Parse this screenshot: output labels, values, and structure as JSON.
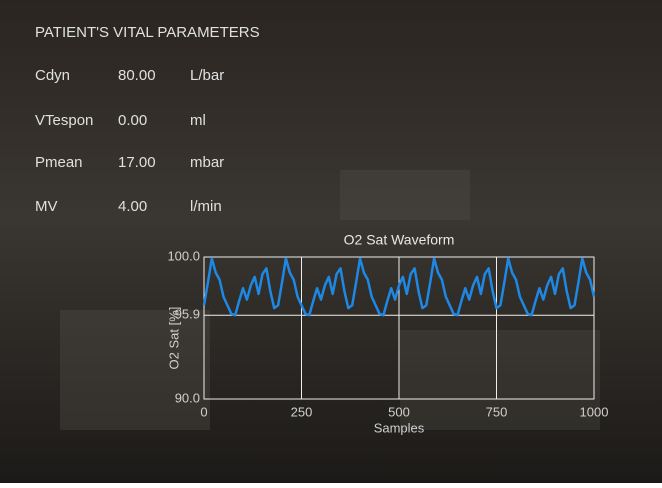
{
  "header": {
    "title": "PATIENT'S VITAL PARAMETERS"
  },
  "vitals": [
    {
      "name": "Cdyn",
      "value": "80.00",
      "unit": "L/bar"
    },
    {
      "name": "VTespon",
      "value": "0.00",
      "unit": "ml"
    },
    {
      "name": "Pmean",
      "value": "17.00",
      "unit": "mbar"
    },
    {
      "name": "MV",
      "value": "4.00",
      "unit": "l/min"
    }
  ],
  "chart_data": {
    "type": "line",
    "title": "O2 Sat Waveform",
    "x_label": "Samples",
    "y_label": "O2 Sat [%]",
    "color": "#1e88e5",
    "grid": true,
    "xlim": [
      0,
      1000
    ],
    "xticks": [
      0,
      250,
      500,
      750,
      1000
    ],
    "ylim": [
      90,
      100
    ],
    "yticks": [
      {
        "value": 90,
        "label": "90.0"
      },
      {
        "value": 95.9,
        "label": "95.9"
      },
      {
        "value": 100,
        "label": "100.0"
      }
    ],
    "x": [
      0,
      10,
      20,
      30,
      40,
      50,
      60,
      70,
      80,
      90,
      100,
      110,
      120,
      130,
      140,
      150,
      160,
      170,
      180,
      190,
      200,
      210,
      220,
      230,
      240,
      250,
      260,
      270,
      280,
      290,
      300,
      310,
      320,
      330,
      340,
      350,
      360,
      370,
      380,
      390,
      400,
      410,
      420,
      430,
      440,
      450,
      460,
      470,
      480,
      490,
      500,
      510,
      520,
      530,
      540,
      550,
      560,
      570,
      580,
      590,
      600,
      610,
      620,
      630,
      640,
      650,
      660,
      670,
      680,
      690,
      700,
      710,
      720,
      730,
      740,
      750,
      760,
      770,
      780,
      790,
      800,
      810,
      820,
      830,
      840,
      850,
      860,
      870,
      880,
      890,
      900,
      910,
      920,
      930,
      940,
      950,
      960,
      970,
      980,
      990,
      1000
    ],
    "values": [
      96.6,
      98.2,
      99.9,
      98.9,
      98.4,
      97.2,
      96.6,
      96.0,
      95.9,
      96.9,
      97.8,
      97.0,
      98.0,
      98.6,
      97.4,
      98.8,
      99.2,
      97.6,
      96.4,
      96.6,
      98.2,
      99.9,
      98.9,
      98.4,
      97.2,
      96.6,
      96.0,
      95.9,
      96.9,
      97.8,
      97.0,
      98.0,
      98.6,
      97.4,
      98.8,
      99.2,
      97.6,
      96.4,
      96.6,
      98.2,
      99.9,
      98.9,
      98.4,
      97.2,
      96.6,
      96.0,
      95.9,
      96.9,
      97.8,
      97.0,
      98.0,
      98.6,
      97.4,
      98.8,
      99.2,
      97.6,
      96.4,
      96.6,
      98.2,
      99.9,
      98.9,
      98.4,
      97.2,
      96.6,
      96.0,
      95.9,
      96.9,
      97.8,
      97.0,
      98.0,
      98.6,
      97.4,
      98.8,
      99.2,
      97.6,
      96.4,
      96.6,
      98.2,
      99.9,
      98.9,
      98.4,
      97.2,
      96.6,
      96.0,
      95.9,
      96.9,
      97.8,
      97.0,
      98.0,
      98.6,
      97.4,
      98.8,
      99.2,
      97.6,
      96.4,
      96.6,
      98.2,
      99.9,
      98.9,
      98.4,
      97.2
    ]
  }
}
